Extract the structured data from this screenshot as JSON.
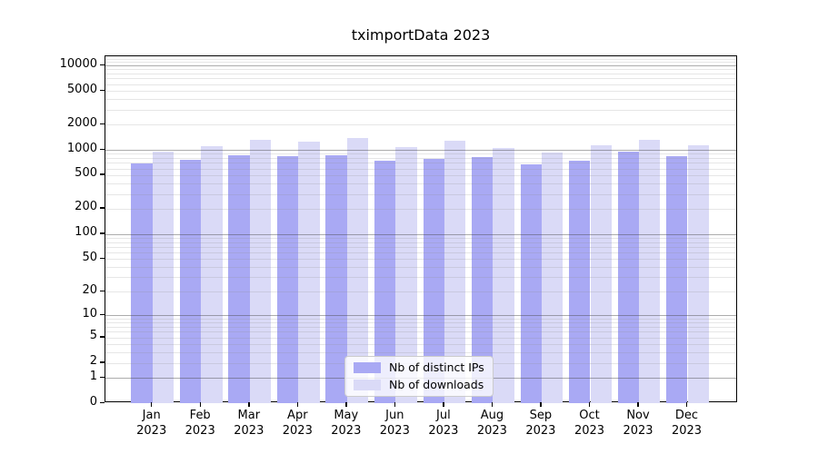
{
  "chart_data": {
    "type": "bar",
    "title": "tximportData 2023",
    "categories": [
      "Jan",
      "Feb",
      "Mar",
      "Apr",
      "May",
      "Jun",
      "Jul",
      "Aug",
      "Sep",
      "Oct",
      "Nov",
      "Dec"
    ],
    "year_label": "2023",
    "series": [
      {
        "name": "Nb of distinct IPs",
        "color": "#a9a9f4",
        "values": [
          690,
          755,
          870,
          840,
          870,
          750,
          780,
          815,
          665,
          740,
          960,
          850
        ]
      },
      {
        "name": "Nb of downloads",
        "color": "#dadaf7",
        "values": [
          950,
          1095,
          1300,
          1245,
          1375,
          1080,
          1280,
          1060,
          925,
          1130,
          1330,
          1130
        ]
      }
    ],
    "yscale": "log1p",
    "y_ticks": [
      0,
      1,
      2,
      5,
      10,
      20,
      50,
      100,
      200,
      500,
      1000,
      2000,
      5000,
      10000
    ],
    "ylim": [
      0,
      12700
    ],
    "grid": true,
    "major_grid_color": "rgba(70,70,70,0.45)",
    "minor_grid_color": "rgba(140,140,140,0.22)",
    "axis_color": "#000000",
    "legend_position": "lower center"
  }
}
